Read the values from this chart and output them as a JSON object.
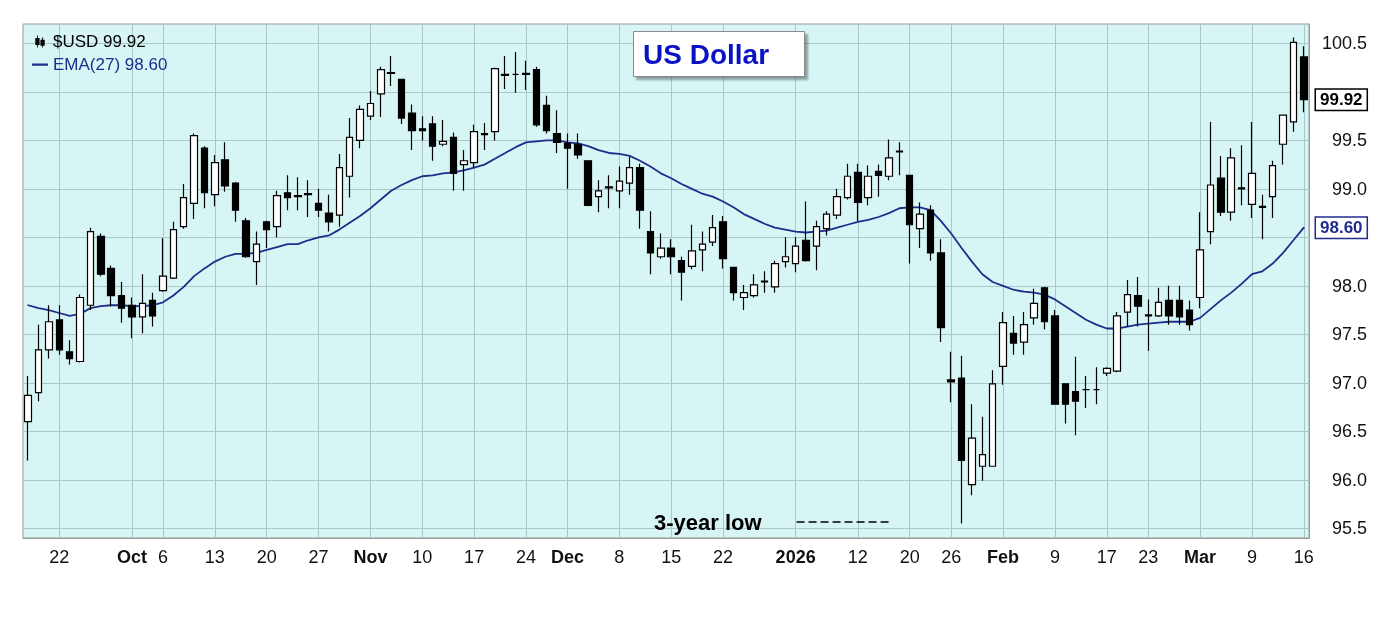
{
  "chart_data": {
    "type": "candlestick",
    "title": "US Dollar",
    "categories": [
      null,
      null,
      null,
      "22",
      null,
      null,
      null,
      null,
      null,
      null,
      "Oct",
      null,
      null,
      "6",
      null,
      null,
      null,
      null,
      "13",
      null,
      null,
      null,
      null,
      "20",
      null,
      null,
      null,
      null,
      "27",
      null,
      null,
      null,
      null,
      "Nov",
      null,
      null,
      null,
      null,
      "10",
      null,
      null,
      null,
      null,
      "17",
      null,
      null,
      null,
      null,
      "24",
      null,
      null,
      null,
      "Dec",
      null,
      null,
      null,
      null,
      "8",
      null,
      null,
      null,
      null,
      "15",
      null,
      null,
      null,
      null,
      "22",
      null,
      null,
      null,
      null,
      null,
      null,
      "2026",
      null,
      null,
      null,
      null,
      null,
      "12",
      null,
      null,
      null,
      null,
      "20",
      null,
      null,
      null,
      "26",
      null,
      null,
      null,
      null,
      "Feb",
      null,
      null,
      null,
      null,
      "9",
      null,
      null,
      null,
      null,
      "17",
      null,
      null,
      null,
      "23",
      null,
      null,
      null,
      null,
      "Mar",
      null,
      null,
      null,
      null,
      "9",
      null,
      null,
      null,
      null,
      "16"
    ],
    "series": [
      {
        "name": "$USD 99.92",
        "type": "candlestick",
        "color": "#000000",
        "ohlc": [
          [
            96.6,
            97.07,
            96.2,
            96.87
          ],
          [
            96.9,
            97.6,
            96.81,
            97.34
          ],
          [
            97.34,
            97.8,
            97.25,
            97.63
          ],
          [
            97.65,
            97.8,
            97.29,
            97.34
          ],
          [
            97.32,
            97.44,
            97.19,
            97.25
          ],
          [
            97.22,
            97.91,
            97.21,
            97.88
          ],
          [
            97.8,
            98.6,
            97.75,
            98.56
          ],
          [
            98.51,
            98.54,
            98.1,
            98.12
          ],
          [
            98.18,
            98.21,
            97.79,
            97.9
          ],
          [
            97.9,
            98.04,
            97.62,
            97.77
          ],
          [
            97.8,
            97.88,
            97.46,
            97.68
          ],
          [
            97.68,
            98.12,
            97.51,
            97.82
          ],
          [
            97.85,
            97.93,
            97.58,
            97.69
          ],
          [
            97.95,
            98.49,
            97.94,
            98.1
          ],
          [
            98.08,
            98.66,
            98.07,
            98.58
          ],
          [
            98.61,
            99.05,
            98.59,
            98.91
          ],
          [
            98.85,
            99.57,
            98.69,
            99.55
          ],
          [
            99.42,
            99.44,
            98.8,
            98.96
          ],
          [
            98.94,
            99.35,
            98.82,
            99.27
          ],
          [
            99.3,
            99.48,
            98.97,
            99.03
          ],
          [
            99.06,
            99.07,
            98.66,
            98.78
          ],
          [
            98.67,
            98.7,
            98.29,
            98.3
          ],
          [
            98.25,
            98.56,
            98.01,
            98.43
          ],
          [
            98.66,
            98.67,
            98.39,
            98.58
          ],
          [
            98.61,
            98.98,
            98.5,
            98.93
          ],
          [
            98.96,
            99.14,
            98.78,
            98.91
          ],
          [
            98.92,
            99.12,
            98.78,
            98.93
          ],
          [
            98.94,
            99.09,
            98.71,
            98.95
          ],
          [
            98.85,
            99.0,
            98.71,
            98.78
          ],
          [
            98.75,
            98.94,
            98.56,
            98.66
          ],
          [
            98.73,
            99.36,
            98.61,
            99.22
          ],
          [
            99.13,
            99.73,
            98.91,
            99.53
          ],
          [
            99.5,
            99.86,
            99.42,
            99.82
          ],
          [
            99.75,
            100.01,
            99.71,
            99.88
          ],
          [
            99.98,
            100.26,
            99.74,
            100.23
          ],
          [
            100.2,
            100.37,
            100.06,
            100.19
          ],
          [
            100.13,
            100.13,
            99.67,
            99.73
          ],
          [
            99.78,
            99.87,
            99.4,
            99.6
          ],
          [
            99.62,
            99.75,
            99.5,
            99.6
          ],
          [
            99.67,
            99.75,
            99.29,
            99.44
          ],
          [
            99.46,
            99.71,
            99.44,
            99.49
          ],
          [
            99.53,
            99.58,
            98.98,
            99.16
          ],
          [
            99.25,
            99.4,
            98.98,
            99.29
          ],
          [
            99.27,
            99.66,
            99.22,
            99.59
          ],
          [
            99.56,
            99.68,
            99.4,
            99.57
          ],
          [
            99.59,
            100.25,
            99.5,
            100.24
          ],
          [
            100.17,
            100.37,
            100.03,
            100.18
          ],
          [
            100.18,
            100.41,
            99.99,
            100.18
          ],
          [
            100.18,
            100.32,
            100.02,
            100.19
          ],
          [
            100.23,
            100.26,
            99.64,
            99.66
          ],
          [
            99.86,
            99.96,
            99.57,
            99.6
          ],
          [
            99.57,
            99.81,
            99.37,
            99.48
          ],
          [
            99.47,
            99.57,
            99.0,
            99.42
          ],
          [
            99.46,
            99.57,
            99.31,
            99.35
          ],
          [
            99.29,
            99.29,
            98.82,
            98.83
          ],
          [
            98.92,
            99.09,
            98.76,
            98.98
          ],
          [
            99.01,
            99.14,
            98.8,
            99.02
          ],
          [
            98.98,
            99.23,
            98.8,
            99.08
          ],
          [
            99.06,
            99.33,
            98.94,
            99.22
          ],
          [
            99.22,
            99.26,
            98.59,
            98.78
          ],
          [
            98.56,
            98.77,
            98.12,
            98.34
          ],
          [
            98.3,
            98.54,
            98.28,
            98.39
          ],
          [
            98.39,
            98.48,
            98.12,
            98.3
          ],
          [
            98.26,
            98.3,
            97.85,
            98.14
          ],
          [
            98.2,
            98.63,
            98.17,
            98.36
          ],
          [
            98.37,
            98.56,
            98.15,
            98.43
          ],
          [
            98.45,
            98.73,
            98.41,
            98.6
          ],
          [
            98.66,
            98.72,
            98.18,
            98.28
          ],
          [
            98.19,
            98.19,
            97.85,
            97.93
          ],
          [
            97.88,
            98.01,
            97.75,
            97.93
          ],
          [
            97.9,
            98.12,
            97.88,
            98.01
          ],
          [
            98.04,
            98.15,
            97.93,
            98.05
          ],
          [
            97.99,
            98.26,
            97.93,
            98.23
          ],
          [
            98.25,
            98.5,
            98.19,
            98.3
          ],
          [
            98.23,
            98.5,
            98.14,
            98.41
          ],
          [
            98.47,
            98.87,
            98.25,
            98.26
          ],
          [
            98.41,
            98.67,
            98.16,
            98.61
          ],
          [
            98.59,
            98.77,
            98.52,
            98.74
          ],
          [
            98.73,
            99.0,
            98.69,
            98.92
          ],
          [
            98.91,
            99.26,
            98.89,
            99.13
          ],
          [
            99.17,
            99.26,
            98.67,
            98.86
          ],
          [
            98.91,
            99.24,
            98.83,
            99.13
          ],
          [
            99.18,
            99.25,
            98.92,
            99.14
          ],
          [
            99.13,
            99.51,
            99.09,
            99.32
          ],
          [
            99.38,
            99.48,
            99.14,
            99.39
          ],
          [
            99.14,
            99.14,
            98.23,
            98.63
          ],
          [
            98.59,
            98.86,
            98.39,
            98.74
          ],
          [
            98.78,
            98.83,
            98.26,
            98.34
          ],
          [
            98.34,
            98.48,
            97.42,
            97.57
          ],
          [
            97.03,
            97.32,
            96.8,
            97.01
          ],
          [
            97.05,
            97.28,
            95.55,
            96.2
          ],
          [
            95.95,
            96.78,
            95.84,
            96.43
          ],
          [
            96.14,
            96.65,
            95.99,
            96.26
          ],
          [
            96.14,
            97.13,
            96.14,
            96.99
          ],
          [
            97.17,
            97.73,
            96.98,
            97.62
          ],
          [
            97.51,
            97.69,
            97.29,
            97.41
          ],
          [
            97.42,
            97.73,
            97.29,
            97.6
          ],
          [
            97.67,
            97.97,
            97.6,
            97.82
          ],
          [
            97.98,
            97.99,
            97.55,
            97.63
          ],
          [
            97.69,
            97.75,
            96.78,
            96.78
          ],
          [
            96.99,
            96.99,
            96.58,
            96.78
          ],
          [
            96.91,
            97.27,
            96.46,
            96.81
          ],
          [
            96.93,
            97.07,
            96.74,
            96.93
          ],
          [
            96.93,
            97.16,
            96.78,
            96.93
          ],
          [
            97.1,
            97.16,
            97.07,
            97.15
          ],
          [
            97.12,
            97.73,
            97.11,
            97.69
          ],
          [
            97.73,
            98.06,
            97.58,
            97.91
          ],
          [
            97.9,
            98.09,
            97.58,
            97.79
          ],
          [
            97.7,
            97.86,
            97.33,
            97.69
          ],
          [
            97.69,
            97.98,
            97.68,
            97.83
          ],
          [
            97.85,
            98.0,
            97.6,
            97.69
          ],
          [
            97.85,
            98.0,
            97.6,
            97.68
          ],
          [
            97.75,
            97.85,
            97.54,
            97.6
          ],
          [
            97.88,
            98.76,
            97.77,
            98.37
          ],
          [
            98.56,
            99.69,
            98.43,
            99.04
          ],
          [
            99.11,
            99.34,
            98.72,
            98.76
          ],
          [
            98.76,
            99.42,
            98.67,
            99.32
          ],
          [
            99.0,
            99.45,
            98.83,
            99.01
          ],
          [
            98.84,
            99.69,
            98.7,
            99.16
          ],
          [
            98.82,
            98.94,
            98.48,
            98.81
          ],
          [
            98.92,
            99.29,
            98.7,
            99.24
          ],
          [
            99.46,
            99.76,
            99.25,
            99.76
          ],
          [
            99.69,
            100.56,
            99.59,
            100.51
          ],
          [
            100.36,
            100.47,
            99.79,
            99.92
          ]
        ],
        "value_labels": [
          null,
          null,
          null,
          null,
          null,
          null,
          null,
          null,
          null,
          null,
          null,
          null,
          null,
          null,
          null,
          null,
          null,
          null,
          null,
          null,
          null,
          null,
          null,
          null,
          null,
          null,
          null,
          null,
          null,
          null,
          null,
          null,
          null,
          null,
          null,
          null,
          null,
          null,
          null,
          null,
          null,
          null,
          null,
          null,
          null,
          null,
          null,
          null,
          null,
          null,
          null,
          null,
          null,
          null,
          null,
          null,
          null,
          null,
          null,
          null,
          null,
          null,
          null,
          null,
          null,
          null,
          null,
          null,
          null,
          null,
          null,
          null,
          null,
          null,
          null,
          null,
          null,
          null,
          null,
          null,
          null,
          null,
          null,
          null,
          null,
          null,
          null,
          null,
          null,
          null,
          null,
          null,
          null,
          null,
          null,
          null,
          null,
          null,
          null,
          null,
          null,
          null,
          null,
          null,
          null,
          null,
          null,
          null,
          null,
          null,
          null,
          null,
          null,
          null,
          null,
          null,
          null,
          null,
          null,
          null,
          null,
          null,
          null,
          "99.92"
        ]
      },
      {
        "name": "EMA(27) 98.60",
        "type": "line",
        "color": "#202c8c",
        "values": [
          97.8,
          97.77,
          97.75,
          97.72,
          97.69,
          97.71,
          97.77,
          97.79,
          97.8,
          97.8,
          97.79,
          97.79,
          97.8,
          97.83,
          97.9,
          97.99,
          98.1,
          98.18,
          98.25,
          98.3,
          98.33,
          98.33,
          98.34,
          98.37,
          98.4,
          98.43,
          98.43,
          98.47,
          98.5,
          98.52,
          98.58,
          98.65,
          98.72,
          98.8,
          98.89,
          98.98,
          99.04,
          99.09,
          99.13,
          99.14,
          99.16,
          99.17,
          99.19,
          99.22,
          99.25,
          99.31,
          99.37,
          99.43,
          99.48,
          99.49,
          99.5,
          99.5,
          99.48,
          99.47,
          99.44,
          99.4,
          99.37,
          99.36,
          99.34,
          99.29,
          99.23,
          99.16,
          99.11,
          99.05,
          99.0,
          98.95,
          98.92,
          98.87,
          98.81,
          98.74,
          98.69,
          98.64,
          98.6,
          98.58,
          98.56,
          98.55,
          98.56,
          98.57,
          98.6,
          98.63,
          98.66,
          98.68,
          98.71,
          98.75,
          98.8,
          98.81,
          98.81,
          98.78,
          98.67,
          98.54,
          98.39,
          98.25,
          98.12,
          98.04,
          98.0,
          97.96,
          97.94,
          97.93,
          97.91,
          97.86,
          97.79,
          97.72,
          97.65,
          97.6,
          97.56,
          97.56,
          97.58,
          97.6,
          97.61,
          97.62,
          97.63,
          97.63,
          97.63,
          97.67,
          97.76,
          97.85,
          97.93,
          98.02,
          98.12,
          98.15,
          98.23,
          98.34,
          98.47,
          98.6
        ],
        "value_labels": [
          null,
          null,
          null,
          null,
          null,
          null,
          null,
          null,
          null,
          null,
          null,
          null,
          null,
          null,
          null,
          null,
          null,
          null,
          null,
          null,
          null,
          null,
          null,
          null,
          null,
          null,
          null,
          null,
          null,
          null,
          null,
          null,
          null,
          null,
          null,
          null,
          null,
          null,
          null,
          null,
          null,
          null,
          null,
          null,
          null,
          null,
          null,
          null,
          null,
          null,
          null,
          null,
          null,
          null,
          null,
          null,
          null,
          null,
          null,
          null,
          null,
          null,
          null,
          null,
          null,
          null,
          null,
          null,
          null,
          null,
          null,
          null,
          null,
          null,
          null,
          null,
          null,
          null,
          null,
          null,
          null,
          null,
          null,
          null,
          null,
          null,
          null,
          null,
          null,
          null,
          null,
          null,
          null,
          null,
          null,
          null,
          null,
          null,
          null,
          null,
          null,
          null,
          null,
          null,
          null,
          null,
          null,
          null,
          null,
          null,
          null,
          null,
          null,
          null,
          null,
          null,
          null,
          null,
          null,
          null,
          null,
          null,
          null,
          "98.60"
        ]
      }
    ],
    "ylim": [
      95.4,
      100.7
    ],
    "yticks": [
      95.5,
      {
        "value": 96,
        "label": "96.0"
      },
      96.5,
      {
        "value": 97,
        "label": "97.0"
      },
      97.5,
      {
        "value": 98,
        "label": "98.0"
      },
      {
        "value": 98.5,
        "label": null
      },
      {
        "value": 99,
        "label": "99.0"
      },
      99.5,
      {
        "value": 100,
        "label": null
      },
      100.5
    ],
    "grid": true,
    "legend": "top left",
    "annotations": [
      "3-year low"
    ]
  }
}
